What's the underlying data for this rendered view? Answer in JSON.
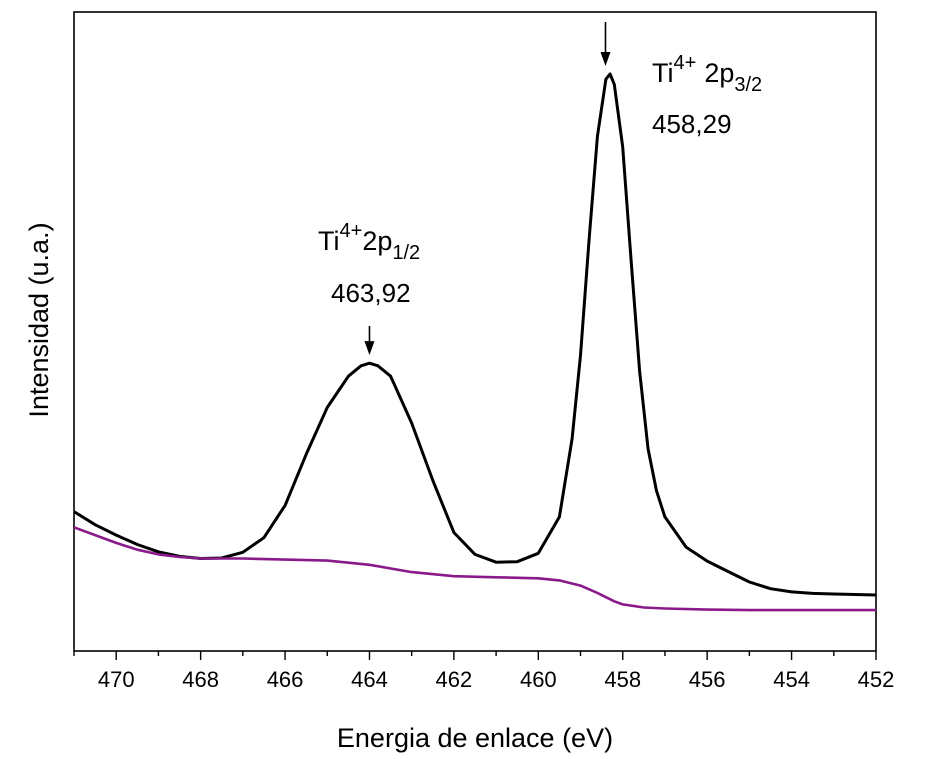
{
  "chart_data": {
    "type": "line",
    "xlabel": "Energia de enlace (eV)",
    "ylabel": "Intensidad (u.a.)",
    "xlim": [
      471,
      452
    ],
    "x_reversed": true,
    "y_ticks_shown": false,
    "grid": false,
    "x_ticks": [
      470,
      468,
      466,
      464,
      462,
      460,
      458,
      456,
      454,
      452
    ],
    "x_tick_labels": [
      "470",
      "468",
      "466",
      "464",
      "462",
      "460",
      "458",
      "456",
      "454",
      "452"
    ],
    "ylim": [
      0,
      1
    ],
    "series": [
      {
        "color": "#000000",
        "x": [
          471,
          470.5,
          470,
          469.5,
          469,
          468.5,
          468,
          467.5,
          467,
          466.5,
          466,
          465.5,
          465,
          464.5,
          464.2,
          464,
          463.8,
          463.5,
          463,
          462.5,
          462,
          461.5,
          461,
          460.5,
          460,
          459.5,
          459.2,
          459,
          458.8,
          458.6,
          458.4,
          458.3,
          458.2,
          458,
          457.8,
          457.6,
          457.4,
          457.2,
          457,
          456.5,
          456,
          455.5,
          455,
          454.5,
          454,
          453.5,
          453,
          452.5,
          452
        ],
        "y": [
          0.16,
          0.135,
          0.115,
          0.097,
          0.083,
          0.074,
          0.07,
          0.071,
          0.082,
          0.11,
          0.172,
          0.27,
          0.36,
          0.42,
          0.44,
          0.445,
          0.44,
          0.42,
          0.33,
          0.22,
          0.12,
          0.078,
          0.063,
          0.064,
          0.08,
          0.15,
          0.3,
          0.46,
          0.68,
          0.88,
          0.99,
          1.0,
          0.98,
          0.86,
          0.64,
          0.43,
          0.28,
          0.2,
          0.15,
          0.092,
          0.065,
          0.045,
          0.025,
          0.012,
          0.006,
          0.003,
          0.002,
          0.001,
          0.0
        ]
      },
      {
        "color": "#8a1a8a",
        "x": [
          471,
          470.5,
          470,
          469.5,
          469,
          468.5,
          468,
          467,
          466,
          465,
          464,
          463,
          462,
          461,
          460,
          459.5,
          459,
          458.6,
          458.2,
          458,
          457.5,
          457,
          456,
          455,
          454,
          453,
          452
        ],
        "y": [
          0.13,
          0.115,
          0.1,
          0.087,
          0.078,
          0.073,
          0.07,
          0.07,
          0.068,
          0.066,
          0.058,
          0.044,
          0.036,
          0.034,
          0.032,
          0.028,
          0.018,
          0.004,
          -0.012,
          -0.018,
          -0.024,
          -0.026,
          -0.028,
          -0.029,
          -0.029,
          -0.029,
          -0.029
        ]
      }
    ],
    "annotations": [
      {
        "label": "Ti",
        "sup": "4+",
        "spectral": "2p",
        "sub": "1/2",
        "value": "463,92",
        "peak_x": 464.0,
        "peak_y": 0.445
      },
      {
        "label": "Ti",
        "sup": "4+",
        "spectral": "2p",
        "sub": "3/2",
        "value": "458,29",
        "peak_x": 458.29,
        "peak_y": 1.0
      }
    ]
  }
}
